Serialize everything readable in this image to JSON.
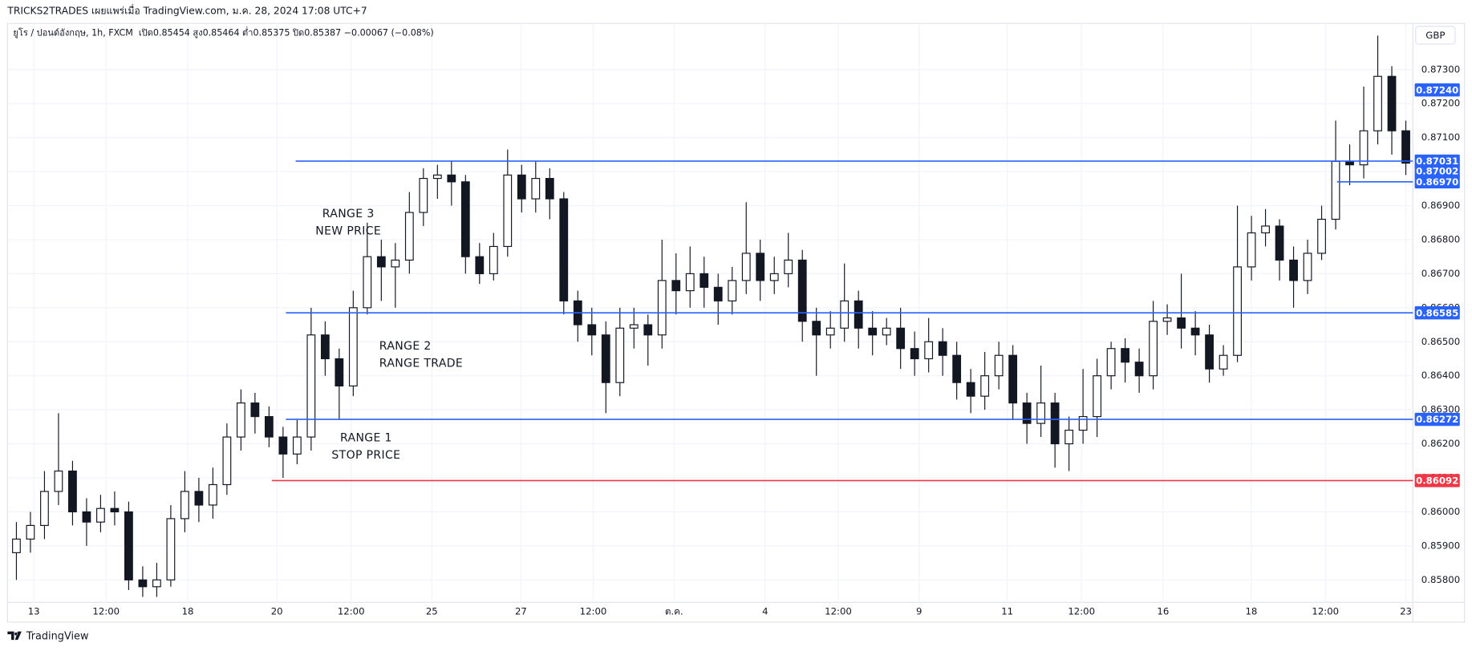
{
  "header": {
    "attribution": "TRICKS2TRADES เผยแพร่เมื่อ TradingView.com, ม.ค. 28, 2024 17:08 UTC+7"
  },
  "footer": {
    "brand": "TradingView"
  },
  "chart_data": {
    "type": "candlestick",
    "title": "ยูโร / ปอนด์อังกฤษ, 1h, FXCM",
    "legend_text": "เปิด0.85454  สูง0.85464  ต่ำ0.85375  ปิด0.85387  −0.00067 (−0.08%)",
    "currency": "GBP",
    "line_color": "#131722",
    "up_color": "#ffffff",
    "down_color": "#131722",
    "xlim": [
      -0.5,
      99.5
    ],
    "xticks": [
      {
        "value": 1.24,
        "label": "13"
      },
      {
        "value": 6.39,
        "label": "12:00"
      },
      {
        "value": 12.21,
        "label": "18"
      },
      {
        "value": 18.56,
        "label": "20"
      },
      {
        "value": 23.85,
        "label": "12:00"
      },
      {
        "value": 29.6,
        "label": "25"
      },
      {
        "value": 35.95,
        "label": "27"
      },
      {
        "value": 41.1,
        "label": "12:00"
      },
      {
        "value": 46.86,
        "label": "ต.ค."
      },
      {
        "value": 53.35,
        "label": "4"
      },
      {
        "value": 58.56,
        "label": "12:00"
      },
      {
        "value": 64.32,
        "label": "9"
      },
      {
        "value": 70.6,
        "label": "11"
      },
      {
        "value": 75.89,
        "label": "12:00"
      },
      {
        "value": 81.7,
        "label": "16"
      },
      {
        "value": 87.99,
        "label": "18"
      },
      {
        "value": 93.27,
        "label": "12:00"
      },
      {
        "value": 99.0,
        "label": "23"
      }
    ],
    "ylim": [
      0.85734,
      0.8743
    ],
    "yticks": [
      {
        "value": 0.858,
        "label": "0.85800"
      },
      {
        "value": 0.859,
        "label": "0.85900"
      },
      {
        "value": 0.86,
        "label": "0.86000"
      },
      {
        "value": 0.861,
        "label": "0.86100"
      },
      {
        "value": 0.862,
        "label": "0.86200"
      },
      {
        "value": 0.863,
        "label": "0.86300"
      },
      {
        "value": 0.864,
        "label": "0.86400"
      },
      {
        "value": 0.865,
        "label": "0.86500"
      },
      {
        "value": 0.866,
        "label": "0.86600"
      },
      {
        "value": 0.867,
        "label": "0.86700"
      },
      {
        "value": 0.868,
        "label": "0.86800"
      },
      {
        "value": 0.869,
        "label": "0.86900"
      },
      {
        "value": 0.87,
        "label": "0.87000"
      },
      {
        "value": 0.871,
        "label": "0.87100"
      },
      {
        "value": 0.872,
        "label": "0.87200"
      },
      {
        "value": 0.873,
        "label": "0.87300"
      }
    ],
    "grid": true,
    "open": [
      0.8588,
      0.8592,
      0.8596,
      0.8606,
      0.8612,
      0.86,
      0.8597,
      0.8601,
      0.86,
      0.858,
      0.8578,
      0.858,
      0.8598,
      0.8606,
      0.8602,
      0.8608,
      0.8622,
      0.8632,
      0.8628,
      0.8622,
      0.8617,
      0.8622,
      0.8652,
      0.8645,
      0.8637,
      0.866,
      0.8675,
      0.8672,
      0.8674,
      0.8688,
      0.8698,
      0.8699,
      0.8697,
      0.8675,
      0.867,
      0.8678,
      0.8699,
      0.8692,
      0.8698,
      0.8692,
      0.8662,
      0.8655,
      0.8652,
      0.8638,
      0.8654,
      0.8655,
      0.8652,
      0.8668,
      0.8665,
      0.867,
      0.8666,
      0.8662,
      0.8668,
      0.8676,
      0.8668,
      0.867,
      0.8674,
      0.8656,
      0.8652,
      0.8654,
      0.8662,
      0.8654,
      0.8652,
      0.8654,
      0.8648,
      0.8645,
      0.865,
      0.8646,
      0.8638,
      0.8634,
      0.864,
      0.8646,
      0.8632,
      0.8626,
      0.8632,
      0.862,
      0.8624,
      0.8628,
      0.864,
      0.8648,
      0.8644,
      0.864,
      0.8656,
      0.8657,
      0.8654,
      0.8652,
      0.8642,
      0.8646,
      0.8672,
      0.8682,
      0.8684,
      0.8674,
      0.8668,
      0.8676,
      0.8686,
      0.8703,
      0.8702,
      0.8712,
      0.8728,
      0.8712
    ],
    "high": [
      0.8597,
      0.86,
      0.8612,
      0.8629,
      0.8615,
      0.8604,
      0.8605,
      0.8606,
      0.8603,
      0.8584,
      0.8585,
      0.8602,
      0.8612,
      0.861,
      0.8613,
      0.8626,
      0.8636,
      0.8635,
      0.8631,
      0.8625,
      0.8627,
      0.866,
      0.8656,
      0.8648,
      0.8665,
      0.8685,
      0.868,
      0.8679,
      0.8694,
      0.8701,
      0.8702,
      0.8703,
      0.8699,
      0.8679,
      0.8682,
      0.87065,
      0.8702,
      0.8703,
      0.8701,
      0.8694,
      0.8665,
      0.866,
      0.8656,
      0.866,
      0.866,
      0.8658,
      0.868,
      0.8676,
      0.8678,
      0.8675,
      0.867,
      0.8672,
      0.8691,
      0.868,
      0.8675,
      0.8682,
      0.8677,
      0.866,
      0.8659,
      0.8673,
      0.8665,
      0.8659,
      0.8657,
      0.866,
      0.8653,
      0.8657,
      0.8654,
      0.865,
      0.8642,
      0.8647,
      0.865,
      0.8649,
      0.8635,
      0.8643,
      0.8635,
      0.8628,
      0.8642,
      0.8645,
      0.865,
      0.8651,
      0.8648,
      0.8662,
      0.8661,
      0.867,
      0.8659,
      0.8655,
      0.8649,
      0.869,
      0.8687,
      0.8689,
      0.8686,
      0.8678,
      0.868,
      0.869,
      0.8715,
      0.8708,
      0.8725,
      0.874,
      0.8731,
      0.8715
    ],
    "low": [
      0.858,
      0.8588,
      0.8592,
      0.8602,
      0.8596,
      0.859,
      0.8594,
      0.8596,
      0.8577,
      0.8575,
      0.8575,
      0.8578,
      0.8594,
      0.8597,
      0.8598,
      0.8605,
      0.8618,
      0.8623,
      0.8619,
      0.861,
      0.8614,
      0.8618,
      0.864,
      0.8627,
      0.8634,
      0.8658,
      0.8662,
      0.866,
      0.867,
      0.8684,
      0.8692,
      0.869,
      0.867,
      0.8667,
      0.8668,
      0.8675,
      0.8688,
      0.8688,
      0.8686,
      0.8658,
      0.865,
      0.8646,
      0.8629,
      0.8634,
      0.8648,
      0.8643,
      0.8648,
      0.8658,
      0.866,
      0.866,
      0.8655,
      0.8658,
      0.8664,
      0.8662,
      0.8664,
      0.8666,
      0.865,
      0.864,
      0.8648,
      0.865,
      0.8648,
      0.8646,
      0.8649,
      0.8642,
      0.864,
      0.8641,
      0.864,
      0.8633,
      0.8629,
      0.863,
      0.8636,
      0.8627,
      0.862,
      0.8622,
      0.8613,
      0.8612,
      0.862,
      0.8622,
      0.8636,
      0.8638,
      0.8635,
      0.8636,
      0.8652,
      0.8648,
      0.8646,
      0.8638,
      0.864,
      0.8644,
      0.8668,
      0.8678,
      0.8668,
      0.866,
      0.8664,
      0.8674,
      0.8683,
      0.8696,
      0.8698,
      0.8708,
      0.8705,
      0.8699
    ],
    "close": [
      0.8592,
      0.8596,
      0.8606,
      0.8612,
      0.86,
      0.8597,
      0.8601,
      0.86,
      0.858,
      0.8578,
      0.858,
      0.8598,
      0.8606,
      0.8602,
      0.8608,
      0.8622,
      0.8632,
      0.8628,
      0.8622,
      0.8617,
      0.8622,
      0.8652,
      0.8645,
      0.8637,
      0.866,
      0.8675,
      0.8672,
      0.8674,
      0.8688,
      0.8698,
      0.8699,
      0.8697,
      0.8675,
      0.867,
      0.8678,
      0.8699,
      0.8692,
      0.8698,
      0.8692,
      0.8662,
      0.8655,
      0.8652,
      0.8638,
      0.8654,
      0.8655,
      0.8652,
      0.8668,
      0.8665,
      0.867,
      0.8666,
      0.8662,
      0.8668,
      0.8676,
      0.8668,
      0.867,
      0.8674,
      0.8656,
      0.8652,
      0.8654,
      0.8662,
      0.8654,
      0.8652,
      0.8654,
      0.8648,
      0.8645,
      0.865,
      0.8646,
      0.8638,
      0.8634,
      0.864,
      0.8646,
      0.8632,
      0.8626,
      0.8632,
      0.862,
      0.8624,
      0.8628,
      0.864,
      0.8648,
      0.8644,
      0.864,
      0.8656,
      0.8657,
      0.8654,
      0.8652,
      0.8642,
      0.8646,
      0.8672,
      0.8682,
      0.8684,
      0.8674,
      0.8668,
      0.8676,
      0.8686,
      0.8703,
      0.8702,
      0.8712,
      0.8728,
      0.8712,
      0.87025
    ],
    "levels": [
      {
        "value": 0.87031,
        "label": "0.87031",
        "color": "#2962ff",
        "x_from": 19.9
      },
      {
        "value": 0.86585,
        "label": "0.86585",
        "color": "#2962ff",
        "x_from": 19.2
      },
      {
        "value": 0.86272,
        "label": "0.86272",
        "color": "#2962ff",
        "x_from": 19.2
      },
      {
        "value": 0.86092,
        "label": "0.86092",
        "color": "#f23645",
        "x_from": 18.2
      },
      {
        "value": 0.8697,
        "label": "0.86970",
        "color": "#2962ff",
        "x_from": 94.1
      }
    ],
    "price_labels": [
      {
        "value": 0.8724,
        "label": "0.87240",
        "color": "#2962ff"
      },
      {
        "value": 0.87002,
        "label": "0.87002",
        "color": "#2962ff"
      }
    ],
    "annotations": [
      {
        "lines": [
          "RANGE 3",
          "NEW PRICE"
        ]
      },
      {
        "lines": [
          "RANGE 2",
          "RANGE TRADE"
        ]
      },
      {
        "lines": [
          "RANGE 1",
          "STOP PRICE"
        ]
      }
    ]
  }
}
